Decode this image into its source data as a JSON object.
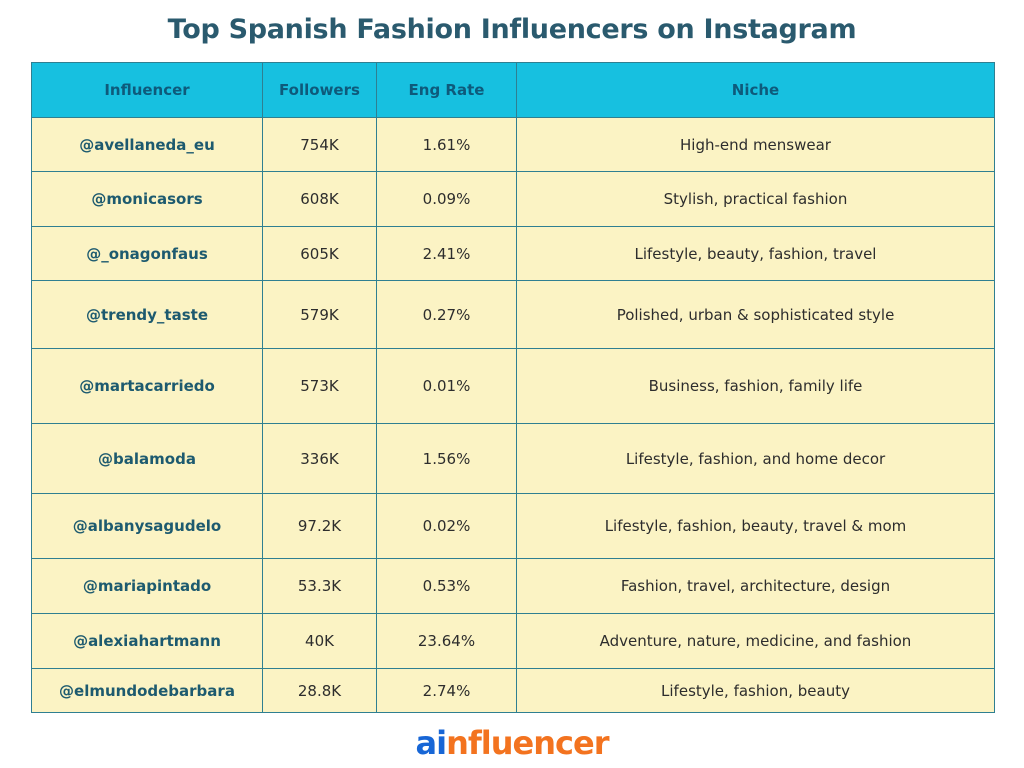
{
  "title": "Top Spanish Fashion Influencers on Instagram",
  "table": {
    "headers": [
      "Influencer",
      "Followers",
      "Eng Rate",
      "Niche"
    ],
    "rows": [
      {
        "handle": "@avellaneda_eu",
        "followers": "754K",
        "eng_rate": "1.61%",
        "niche": "High-end menswear"
      },
      {
        "handle": "@monicasors",
        "followers": "608K",
        "eng_rate": "0.09%",
        "niche": "Stylish, practical fashion"
      },
      {
        "handle": "@_onagonfaus",
        "followers": "605K",
        "eng_rate": "2.41%",
        "niche": "Lifestyle, beauty, fashion, travel"
      },
      {
        "handle": "@trendy_taste",
        "followers": "579K",
        "eng_rate": "0.27%",
        "niche": "Polished, urban & sophisticated style"
      },
      {
        "handle": "@martacarriedo",
        "followers": "573K",
        "eng_rate": "0.01%",
        "niche": "Business, fashion, family life"
      },
      {
        "handle": "@balamoda",
        "followers": "336K",
        "eng_rate": "1.56%",
        "niche": "Lifestyle, fashion, and home decor"
      },
      {
        "handle": "@albanysagudelo",
        "followers": "97.2K",
        "eng_rate": "0.02%",
        "niche": "Lifestyle, fashion, beauty, travel & mom"
      },
      {
        "handle": "@mariapintado",
        "followers": "53.3K",
        "eng_rate": "0.53%",
        "niche": "Fashion, travel, architecture, design"
      },
      {
        "handle": "@alexiahartmann",
        "followers": "40K",
        "eng_rate": "23.64%",
        "niche": "Adventure, nature, medicine, and fashion"
      },
      {
        "handle": "@elmundodebarbara",
        "followers": "28.8K",
        "eng_rate": "2.74%",
        "niche": "Lifestyle, fashion, beauty"
      }
    ]
  },
  "logo": {
    "part1": "ai",
    "part2": "nfluencer"
  },
  "colors": {
    "title": "#2a5a6e",
    "header_bg": "#17c0e0",
    "header_text": "#0e5a7b",
    "row_bg": "#fbf3c4",
    "border": "#2f7f91",
    "logo_ai": "#1766d6",
    "logo_influencer": "#f3731f"
  }
}
